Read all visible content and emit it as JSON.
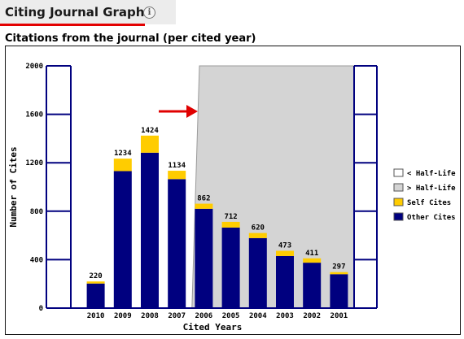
{
  "header": {
    "title": "Citing Journal Graph",
    "info_icon": "info-icon"
  },
  "chart_data": {
    "type": "bar",
    "title": "Citations from the journal (per cited year)",
    "xlabel": "Cited Years",
    "ylabel": "Number of Cites",
    "ylim": [
      0,
      2000
    ],
    "yticks": [
      "0",
      "400",
      "800",
      "1200",
      "1600",
      "2000"
    ],
    "categories": [
      "2010",
      "2009",
      "2008",
      "2007",
      "2006",
      "2005",
      "2004",
      "2003",
      "2002",
      "2001"
    ],
    "totals": [
      220,
      1234,
      1424,
      1134,
      862,
      712,
      620,
      473,
      411,
      297
    ],
    "series": [
      {
        "name": "Other Cites",
        "values": [
          203,
          1131,
          1283,
          1065,
          820,
          665,
          578,
          430,
          375,
          280
        ],
        "color": "#00007f"
      },
      {
        "name": "Self Cites",
        "values": [
          17,
          103,
          141,
          69,
          42,
          47,
          42,
          43,
          36,
          17
        ],
        "color": "#ffcc00"
      }
    ],
    "half_life_region": {
      "legend": "> Half-Life",
      "color": "#d4d4d4",
      "from_category": "2006"
    },
    "legend": [
      {
        "label": "< Half-Life",
        "color": "#ffffff"
      },
      {
        "label": "> Half-Life",
        "color": "#d4d4d4"
      },
      {
        "label": "Self Cites",
        "color": "#ffcc00"
      },
      {
        "label": "Other Cites",
        "color": "#00007f"
      }
    ],
    "legend_position": "right",
    "annotation": {
      "type": "red-arrow",
      "color": "#e00000"
    },
    "grid": false
  }
}
